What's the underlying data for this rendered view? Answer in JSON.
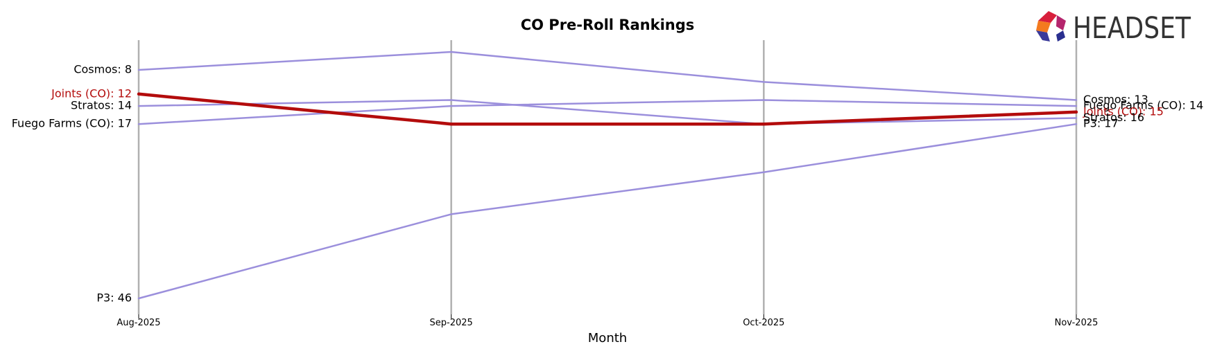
{
  "chart_data": {
    "type": "line",
    "title": "CO Pre-Roll Rankings",
    "xlabel": "Month",
    "ylabel": "",
    "categories": [
      "Aug-2025",
      "Sep-2025",
      "Oct-2025",
      "Nov-2025"
    ],
    "y_inverted": true,
    "series": [
      {
        "name": "Cosmos",
        "values": [
          8,
          5,
          10,
          13
        ],
        "color": "#9b8fdc",
        "highlight": false
      },
      {
        "name": "Stratos",
        "values": [
          14,
          13,
          17,
          16
        ],
        "color": "#9b8fdc",
        "highlight": false
      },
      {
        "name": "Fuego Farms (CO)",
        "values": [
          17,
          14,
          13,
          14
        ],
        "color": "#9b8fdc",
        "highlight": false
      },
      {
        "name": "P3",
        "values": [
          46,
          32,
          25,
          17
        ],
        "color": "#9b8fdc",
        "highlight": false
      },
      {
        "name": "Joints (CO)",
        "values": [
          12,
          17,
          17,
          15
        ],
        "color": "#b30c0c",
        "highlight": true
      }
    ],
    "start_labels": [
      {
        "text": "Cosmos: 8",
        "series": "Cosmos"
      },
      {
        "text": "Joints (CO): 12",
        "series": "Joints (CO)"
      },
      {
        "text": "Stratos: 14",
        "series": "Stratos"
      },
      {
        "text": "Fuego Farms (CO): 17",
        "series": "Fuego Farms (CO)"
      },
      {
        "text": "P3: 46",
        "series": "P3"
      }
    ],
    "end_labels": [
      {
        "text": "Cosmos: 13",
        "series": "Cosmos"
      },
      {
        "text": "Fuego Farms (CO): 14",
        "series": "Fuego Farms (CO)"
      },
      {
        "text": "Joints (CO): 15",
        "series": "Joints (CO)"
      },
      {
        "text": "Stratos: 16",
        "series": "Stratos"
      },
      {
        "text": "P3: 17",
        "series": "P3"
      }
    ],
    "grid": "vertical lines at each month"
  },
  "logo": {
    "text": "HEADSET"
  },
  "colors": {
    "highlight": "#b30c0c",
    "other": "#9b8fdc",
    "gridline": "#b0b0b0",
    "logo_text": "#333333"
  }
}
